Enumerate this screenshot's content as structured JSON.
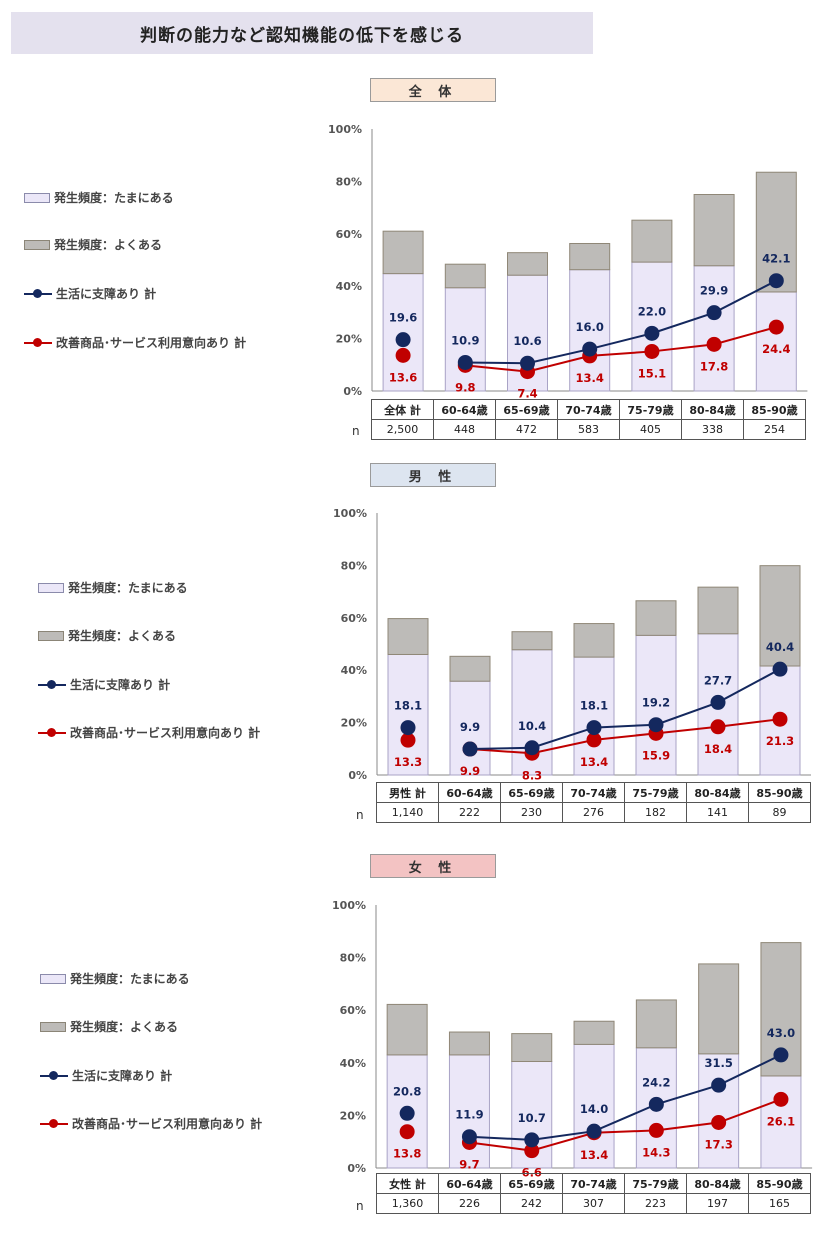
{
  "page": {
    "title": "判断の能力など認知機能の低下を感じる"
  },
  "legend": {
    "light_bar": "発生頻度：たまにある",
    "gray_bar": "発生頻度：よくある",
    "navy_line": "生活に支障あり 計",
    "red_line": "改善商品･サービス利用意向あり 計"
  },
  "colors": {
    "light_bar": "#ebe7f8",
    "gray_bar": "#bdbbb8",
    "navy_line": "#14285e",
    "red_line": "#c00000",
    "title_bg": "#e4e1ee",
    "all_bg": "#fbe7d6",
    "male_bg": "#dde5f0",
    "female_bg": "#f3c3c3"
  },
  "n_label": "n",
  "chart_data": [
    {
      "type": "bar",
      "title": "全 体",
      "categories": [
        "全体 計",
        "60-64歳",
        "65-69歳",
        "70-74歳",
        "75-79歳",
        "80-84歳",
        "85-90歳"
      ],
      "y_ticks": [
        "0%",
        "20%",
        "40%",
        "60%",
        "80%",
        "100%"
      ],
      "ylim": [
        0,
        100
      ],
      "n_values": [
        "2,500",
        "448",
        "472",
        "583",
        "405",
        "338",
        "254"
      ],
      "series": [
        {
          "name": "発生頻度：たまにある",
          "kind": "stacked-bar",
          "values": [
            44.8,
            39.4,
            44.2,
            46.3,
            49.2,
            47.8,
            37.8
          ]
        },
        {
          "name": "発生頻度：よくある",
          "kind": "stacked-bar",
          "values": [
            16.2,
            9.0,
            8.6,
            10.0,
            16.0,
            27.2,
            45.7
          ]
        },
        {
          "name": "生活に支障あり 計",
          "kind": "line",
          "values": [
            19.6,
            10.9,
            10.6,
            16.0,
            22.0,
            29.9,
            42.1
          ],
          "labels": [
            "19.6",
            "10.9",
            "10.6",
            "16.0",
            "22.0",
            "29.9",
            "42.1"
          ]
        },
        {
          "name": "改善商品･サービス利用意向あり 計",
          "kind": "line",
          "values": [
            13.6,
            9.8,
            7.4,
            13.4,
            15.1,
            17.8,
            24.4
          ],
          "labels": [
            "13.6",
            "9.8",
            "7.4",
            "13.4",
            "15.1",
            "17.8",
            "24.4"
          ]
        }
      ]
    },
    {
      "type": "bar",
      "title": "男 性",
      "categories": [
        "男性 計",
        "60-64歳",
        "65-69歳",
        "70-74歳",
        "75-79歳",
        "80-84歳",
        "85-90歳"
      ],
      "y_ticks": [
        "0%",
        "20%",
        "40%",
        "60%",
        "80%",
        "100%"
      ],
      "ylim": [
        0,
        100
      ],
      "n_values": [
        "1,140",
        "222",
        "230",
        "276",
        "182",
        "141",
        "89"
      ],
      "series": [
        {
          "name": "発生頻度：たまにある",
          "kind": "stacked-bar",
          "values": [
            46.0,
            35.8,
            47.8,
            45.0,
            53.3,
            53.9,
            41.6
          ]
        },
        {
          "name": "発生頻度：よくある",
          "kind": "stacked-bar",
          "values": [
            13.7,
            9.5,
            6.9,
            12.8,
            13.2,
            17.8,
            38.3
          ]
        },
        {
          "name": "生活に支障あり 計",
          "kind": "line",
          "values": [
            18.1,
            9.9,
            10.4,
            18.1,
            19.2,
            27.7,
            40.4
          ],
          "labels": [
            "18.1",
            "9.9",
            "10.4",
            "18.1",
            "19.2",
            "27.7",
            "40.4"
          ]
        },
        {
          "name": "改善商品･サービス利用意向あり 計",
          "kind": "line",
          "values": [
            13.3,
            9.9,
            8.3,
            13.4,
            15.9,
            18.4,
            21.3
          ],
          "labels": [
            "13.3",
            "9.9",
            "8.3",
            "13.4",
            "15.9",
            "18.4",
            "21.3"
          ]
        }
      ]
    },
    {
      "type": "bar",
      "title": "女 性",
      "categories": [
        "女性 計",
        "60-64歳",
        "65-69歳",
        "70-74歳",
        "75-79歳",
        "80-84歳",
        "85-90歳"
      ],
      "y_ticks": [
        "0%",
        "20%",
        "40%",
        "60%",
        "80%",
        "100%"
      ],
      "ylim": [
        0,
        100
      ],
      "n_values": [
        "1,360",
        "226",
        "242",
        "307",
        "223",
        "197",
        "165"
      ],
      "series": [
        {
          "name": "発生頻度：たまにある",
          "kind": "stacked-bar",
          "values": [
            43.0,
            43.0,
            40.5,
            47.0,
            45.7,
            43.4,
            35.0
          ]
        },
        {
          "name": "発生頻度：よくある",
          "kind": "stacked-bar",
          "values": [
            19.2,
            8.7,
            10.6,
            8.8,
            18.2,
            34.2,
            50.7
          ]
        },
        {
          "name": "生活に支障あり 計",
          "kind": "line",
          "values": [
            20.8,
            11.9,
            10.7,
            14.0,
            24.2,
            31.5,
            43.0
          ],
          "labels": [
            "20.8",
            "11.9",
            "10.7",
            "14.0",
            "24.2",
            "31.5",
            "43.0"
          ]
        },
        {
          "name": "改善商品･サービス利用意向あり 計",
          "kind": "line",
          "values": [
            13.8,
            9.7,
            6.6,
            13.4,
            14.3,
            17.3,
            26.1
          ],
          "labels": [
            "13.8",
            "9.7",
            "6.6",
            "13.4",
            "14.3",
            "17.3",
            "26.1"
          ]
        }
      ]
    }
  ]
}
